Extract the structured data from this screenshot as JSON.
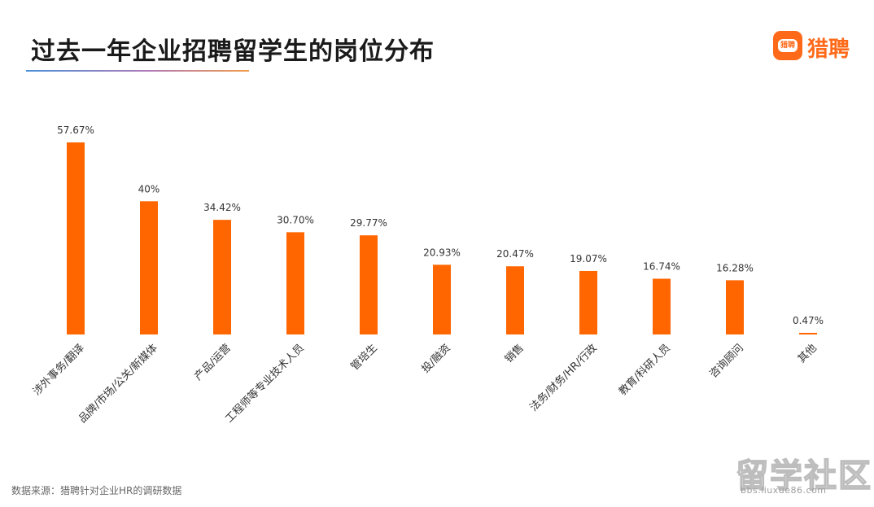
{
  "header": {
    "title": "过去一年企业招聘留学生的岗位分布"
  },
  "logo": {
    "badge_text": "猎聘",
    "text": "猎聘",
    "brand_color": "#ff6a1a"
  },
  "chart_data": {
    "type": "bar",
    "categories": [
      "涉外事务/翻译",
      "品牌/市场/公关/新媒体",
      "产品/运营",
      "工程师等专业技术人员",
      "管培生",
      "投/融资",
      "销售",
      "法务/财务/HR/行政",
      "教育/科研人员",
      "咨询顾问",
      "其他"
    ],
    "values": [
      57.67,
      40,
      34.42,
      30.7,
      29.77,
      20.93,
      20.47,
      19.07,
      16.74,
      16.28,
      0.47
    ],
    "labels": [
      "57.67%",
      "40%",
      "34.42%",
      "30.70%",
      "29.77%",
      "20.93%",
      "20.47%",
      "19.07%",
      "16.74%",
      "16.28%",
      "0.47%"
    ],
    "unit": "%",
    "ylim": [
      0,
      60
    ],
    "grid": false,
    "bar_color": "#ff6600",
    "title": "过去一年企业招聘留学生的岗位分布"
  },
  "footer": {
    "source": "数据来源：猎聘针对企业HR的调研数据"
  },
  "watermark": {
    "main": "留学社区",
    "url": "bbs.liuxue86.com"
  }
}
